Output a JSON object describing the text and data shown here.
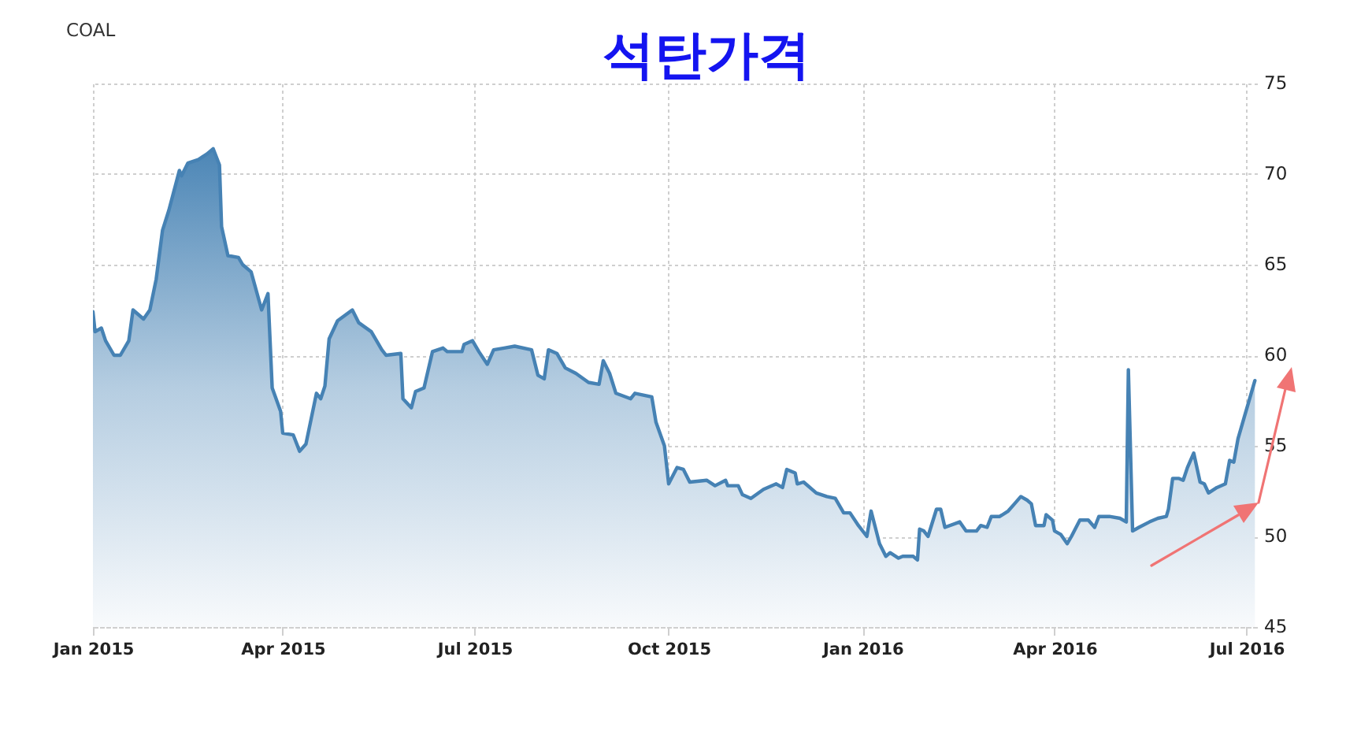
{
  "chart_data": {
    "type": "area",
    "title": "석탄가격",
    "subtitle": "COAL",
    "x": [
      "2015-01-01",
      "2015-01-02",
      "2015-01-05",
      "2015-01-07",
      "2015-01-11",
      "2015-01-14",
      "2015-01-18",
      "2015-01-20",
      "2015-01-25",
      "2015-01-28",
      "2015-01-31",
      "2015-02-03",
      "2015-02-06",
      "2015-02-11",
      "2015-02-12",
      "2015-02-15",
      "2015-02-20",
      "2015-02-24",
      "2015-02-27",
      "2015-03-02",
      "2015-03-03",
      "2015-03-06",
      "2015-03-11",
      "2015-03-13",
      "2015-03-17",
      "2015-03-22",
      "2015-03-25",
      "2015-03-27",
      "2015-03-31",
      "2015-04-01",
      "2015-04-06",
      "2015-04-09",
      "2015-04-12",
      "2015-04-17",
      "2015-04-19",
      "2015-04-21",
      "2015-04-23",
      "2015-04-27",
      "2015-05-04",
      "2015-05-07",
      "2015-05-13",
      "2015-05-18",
      "2015-05-20",
      "2015-05-27",
      "2015-05-28",
      "2015-06-01",
      "2015-06-03",
      "2015-06-07",
      "2015-06-11",
      "2015-06-16",
      "2015-06-18",
      "2015-06-25",
      "2015-06-26",
      "2015-06-30",
      "2015-07-03",
      "2015-07-07",
      "2015-07-10",
      "2015-07-15",
      "2015-07-20",
      "2015-07-28",
      "2015-07-31",
      "2015-08-03",
      "2015-08-05",
      "2015-08-09",
      "2015-08-13",
      "2015-08-18",
      "2015-08-24",
      "2015-08-29",
      "2015-08-31",
      "2015-09-03",
      "2015-09-06",
      "2015-09-13",
      "2015-09-15",
      "2015-09-23",
      "2015-09-25",
      "2015-09-29",
      "2015-10-01",
      "2015-10-05",
      "2015-10-08",
      "2015-10-11",
      "2015-10-19",
      "2015-10-23",
      "2015-10-28",
      "2015-10-29",
      "2015-11-03",
      "2015-11-05",
      "2015-11-09",
      "2015-11-15",
      "2015-11-21",
      "2015-11-24",
      "2015-11-26",
      "2015-11-30",
      "2015-12-01",
      "2015-12-04",
      "2015-12-10",
      "2015-12-15",
      "2015-12-19",
      "2015-12-23",
      "2015-12-26",
      "2015-12-30",
      "2016-01-03",
      "2016-01-05",
      "2016-01-09",
      "2016-01-12",
      "2016-01-14",
      "2016-01-18",
      "2016-01-20",
      "2016-01-25",
      "2016-01-27",
      "2016-01-28",
      "2016-01-30",
      "2016-02-01",
      "2016-02-05",
      "2016-02-07",
      "2016-02-09",
      "2016-02-16",
      "2016-02-19",
      "2016-02-24",
      "2016-02-26",
      "2016-02-29",
      "2016-03-02",
      "2016-03-06",
      "2016-03-10",
      "2016-03-13",
      "2016-03-16",
      "2016-03-19",
      "2016-03-21",
      "2016-03-23",
      "2016-03-27",
      "2016-03-28",
      "2016-03-31",
      "2016-04-01",
      "2016-04-04",
      "2016-04-07",
      "2016-04-09",
      "2016-04-13",
      "2016-04-17",
      "2016-04-20",
      "2016-04-22",
      "2016-04-27",
      "2016-05-02",
      "2016-05-05",
      "2016-05-06",
      "2016-05-08",
      "2016-05-11",
      "2016-05-16",
      "2016-05-20",
      "2016-05-24",
      "2016-05-25",
      "2016-05-27",
      "2016-05-30",
      "2016-06-01",
      "2016-06-03",
      "2016-06-06",
      "2016-06-09",
      "2016-06-11",
      "2016-06-13",
      "2016-06-17",
      "2016-06-21",
      "2016-06-23",
      "2016-06-25",
      "2016-06-27",
      "2016-06-30",
      "2016-07-05"
    ],
    "series": [
      {
        "color": "#4682b4",
        "values": [
          62.4,
          61.3,
          61.5,
          60.8,
          60.0,
          60.0,
          60.8,
          62.5,
          62.0,
          62.5,
          64.2,
          66.9,
          68.0,
          70.2,
          69.9,
          70.6,
          70.8,
          71.1,
          71.4,
          70.5,
          67.1,
          65.5,
          65.4,
          65.0,
          64.6,
          62.5,
          63.4,
          58.2,
          56.9,
          55.7,
          55.6,
          54.7,
          55.1,
          57.9,
          57.6,
          58.3,
          60.9,
          61.9,
          62.5,
          61.8,
          61.3,
          60.3,
          60.0,
          60.1,
          57.6,
          57.1,
          58.0,
          58.2,
          60.2,
          60.4,
          60.2,
          60.2,
          60.6,
          60.8,
          60.2,
          59.5,
          60.3,
          60.4,
          60.5,
          60.3,
          58.9,
          58.7,
          60.3,
          60.1,
          59.3,
          59.0,
          58.5,
          58.4,
          59.7,
          59.0,
          57.9,
          57.6,
          57.9,
          57.7,
          56.3,
          55.0,
          52.9,
          53.8,
          53.7,
          53.0,
          53.1,
          52.8,
          53.1,
          52.8,
          52.8,
          52.3,
          52.1,
          52.6,
          52.9,
          52.7,
          53.7,
          53.5,
          52.9,
          53.0,
          52.4,
          52.2,
          52.1,
          51.3,
          51.3,
          50.6,
          50.0,
          51.4,
          49.6,
          48.9,
          49.1,
          48.8,
          48.9,
          48.9,
          48.7,
          50.4,
          50.3,
          50.0,
          51.5,
          51.5,
          50.5,
          50.8,
          50.3,
          50.3,
          50.6,
          50.5,
          51.1,
          51.1,
          51.4,
          51.8,
          52.2,
          52.0,
          51.8,
          50.6,
          50.6,
          51.2,
          50.9,
          50.3,
          50.1,
          49.6,
          50.0,
          50.9,
          50.9,
          50.5,
          51.1,
          51.1,
          51.0,
          50.8,
          59.2,
          50.3,
          50.5,
          50.8,
          51.0,
          51.1,
          51.5,
          53.2,
          53.2,
          53.1,
          53.8,
          54.6,
          53.0,
          52.9,
          52.4,
          52.7,
          52.9,
          54.2,
          54.1,
          55.4,
          56.6,
          58.6
        ]
      }
    ],
    "xlim": [
      "2015-01-01",
      "2016-07-06"
    ],
    "xticks": [
      {
        "value": "2015-01",
        "label": "Jan 2015"
      },
      {
        "value": "2015-04",
        "label": "Apr 2015"
      },
      {
        "value": "2015-07",
        "label": "Jul 2015"
      },
      {
        "value": "2015-10",
        "label": "Oct 2015"
      },
      {
        "value": "2016-01",
        "label": "Jan 2016"
      },
      {
        "value": "2016-04",
        "label": "Apr 2016"
      },
      {
        "value": "2016-07",
        "label": "Jul 2016"
      }
    ],
    "ylim": [
      45,
      75
    ],
    "yticks": [
      45,
      50,
      55,
      60,
      65,
      70,
      75
    ],
    "grid": true
  }
}
